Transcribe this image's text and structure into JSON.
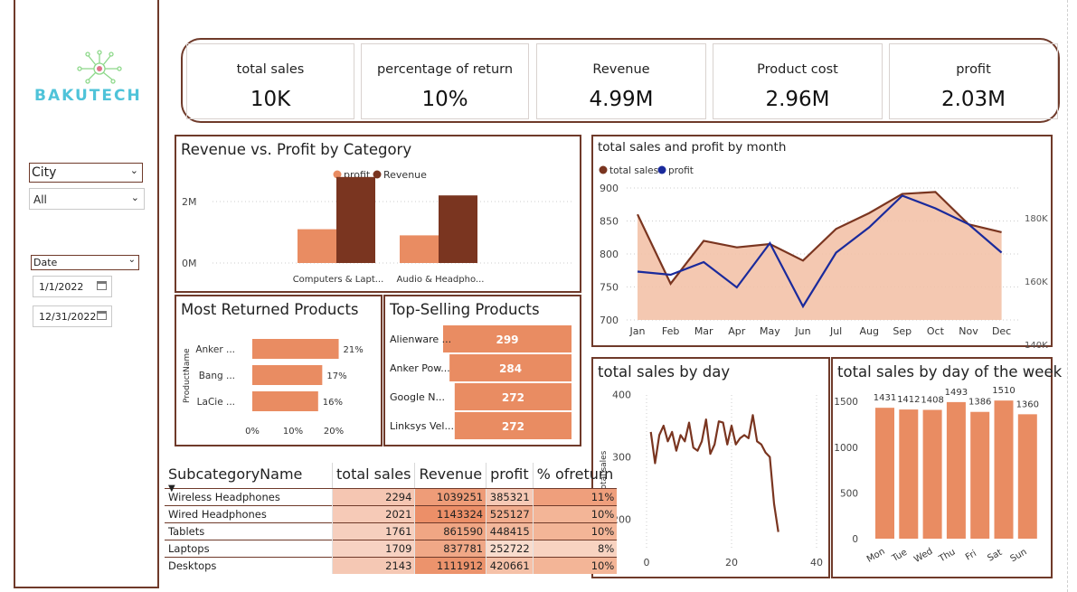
{
  "brand": {
    "name": "BAKUTECH",
    "color_a": "#4fc3d9",
    "color_b": "#e0708a"
  },
  "slicers": {
    "city_label": "City",
    "city_value": "All",
    "date_label": "Date",
    "date_from": "1/1/2022",
    "date_to": "12/31/2022"
  },
  "kpis": [
    {
      "label": "total sales",
      "value": "10K"
    },
    {
      "label": "percentage of return",
      "value": "10%"
    },
    {
      "label": "Revenue",
      "value": "4.99M"
    },
    {
      "label": "Product cost",
      "value": "2.96M"
    },
    {
      "label": "profit",
      "value": "2.03M"
    }
  ],
  "colors": {
    "dark": "#7a3520",
    "light": "#e98c62",
    "navy": "#1a2a9c",
    "border": "#6f3a2a",
    "area": "#f3c2a8"
  },
  "chart_data": [
    {
      "id": "rev_profit_cat",
      "type": "bar",
      "title": "Revenue vs. Profit by Category",
      "categories": [
        "Computers & Lapt...",
        "Audio & Headpho..."
      ],
      "legend": [
        "profit",
        "Revenue"
      ],
      "series": [
        {
          "name": "profit",
          "values": [
            1100000,
            900000
          ]
        },
        {
          "name": "Revenue",
          "values": [
            2800000,
            2200000
          ]
        }
      ],
      "yticks": [
        "2M",
        "0M"
      ],
      "ylim": [
        0,
        3000000
      ]
    },
    {
      "id": "sales_profit_month",
      "type": "line",
      "title": "total sales and profit by month",
      "legend": [
        "total sales",
        "profit"
      ],
      "categories": [
        "Jan",
        "Feb",
        "Mar",
        "Apr",
        "May",
        "Jun",
        "Jul",
        "Aug",
        "Sep",
        "Oct",
        "Nov",
        "Dec"
      ],
      "series": [
        {
          "name": "total sales",
          "values": [
            860,
            755,
            820,
            810,
            815,
            790,
            838,
            862,
            891,
            894,
            845,
            833
          ]
        },
        {
          "name": "profit",
          "values": [
            163000,
            162000,
            166000,
            158000,
            172000,
            152000,
            169000,
            177000,
            187000,
            183000,
            178000,
            169000
          ]
        }
      ],
      "yticks_left": [
        "900",
        "850",
        "800",
        "750",
        "700"
      ],
      "ylim_left": [
        700,
        900
      ],
      "yticks_right": [
        "180K",
        "160K",
        "140K"
      ],
      "ylim_right": [
        140000,
        190000
      ]
    },
    {
      "id": "most_returned",
      "type": "bar",
      "title": "Most Returned Products",
      "ylabel": "ProductName",
      "categories": [
        "Anker ...",
        "Bang ...",
        "LaCie ..."
      ],
      "values": [
        0.21,
        0.17,
        0.16
      ],
      "labels": [
        "21%",
        "17%",
        "16%"
      ],
      "xticks": [
        "0%",
        "10%",
        "20%"
      ],
      "xlim": [
        0,
        0.2
      ]
    },
    {
      "id": "top_selling",
      "type": "bar",
      "title": "Top-Selling Products",
      "categories": [
        "Alienware ...",
        "Anker Pow...",
        "Google N...",
        "Linksys Vel..."
      ],
      "values": [
        299,
        284,
        272,
        272
      ]
    },
    {
      "id": "sales_by_day",
      "type": "line",
      "title": "total sales by day",
      "ylabel": "total sales",
      "x": [
        1,
        2,
        3,
        4,
        5,
        6,
        7,
        8,
        9,
        10,
        11,
        12,
        13,
        14,
        15,
        16,
        17,
        18,
        19,
        20,
        21,
        22,
        23,
        24,
        25,
        26,
        27,
        28,
        29,
        30,
        31
      ],
      "values": [
        340,
        290,
        335,
        350,
        325,
        340,
        310,
        335,
        325,
        355,
        315,
        310,
        325,
        360,
        305,
        320,
        357,
        355,
        320,
        350,
        320,
        330,
        335,
        330,
        367,
        325,
        320,
        307,
        300,
        225,
        180
      ],
      "yticks": [
        "400",
        "300",
        "200"
      ],
      "ylim": [
        175,
        405
      ],
      "xticks": [
        "0",
        "20",
        "40"
      ],
      "xlim": [
        -1,
        41
      ]
    },
    {
      "id": "sales_by_weekday",
      "type": "bar",
      "title": "total sales by day of the week",
      "categories": [
        "Mon",
        "Tue",
        "Wed",
        "Thu",
        "Fri",
        "Sat",
        "Sun"
      ],
      "values": [
        1431,
        1412,
        1408,
        1493,
        1386,
        1510,
        1360
      ],
      "yticks": [
        "1500",
        "1000",
        "500",
        "0"
      ],
      "ylim": [
        0,
        1650
      ]
    }
  ],
  "table": {
    "headers": [
      "SubcategoryName",
      "total sales",
      "Revenue",
      "profit",
      "% ofreturn"
    ],
    "rows": [
      [
        "Wireless Headphones",
        "2294",
        "1039251",
        "385321",
        "11%"
      ],
      [
        "Wired Headphones",
        "2021",
        "1143324",
        "525127",
        "10%"
      ],
      [
        "Tablets",
        "1761",
        "861590",
        "448415",
        "10%"
      ],
      [
        "Laptops",
        "1709",
        "837781",
        "252722",
        "8%"
      ],
      [
        "Desktops",
        "2143",
        "1111912",
        "420661",
        "10%"
      ]
    ]
  }
}
